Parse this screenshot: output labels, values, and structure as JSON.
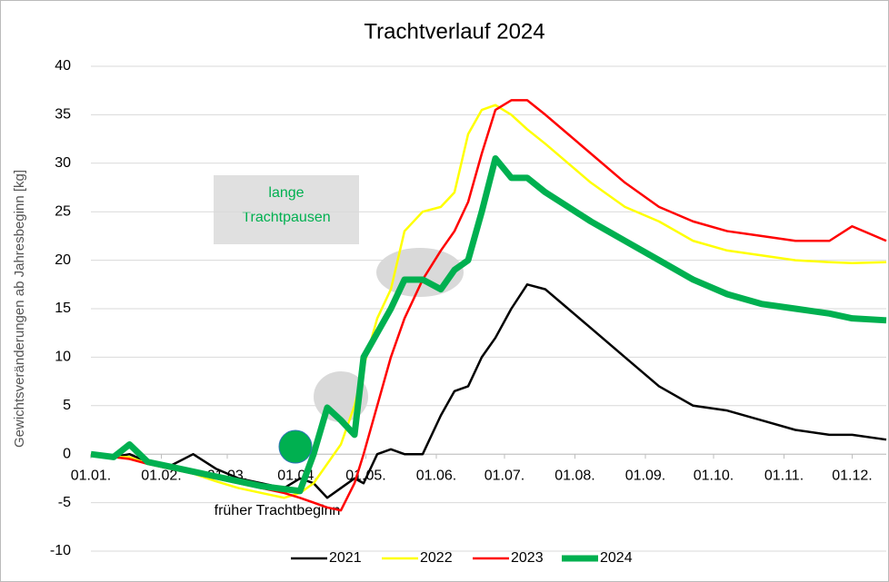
{
  "chart_data": {
    "type": "line",
    "title": "Trachtverlauf 2024",
    "y_label": "Gewichtsveränderungen ab Jahresbeginn [kg]",
    "annotations": {
      "pause": [
        "lange",
        "Trachtpausen"
      ],
      "start": "früher Trachtbeginn"
    },
    "x": [
      0,
      10,
      17,
      25,
      35,
      45,
      55,
      65,
      75,
      85,
      92,
      98,
      104,
      110,
      116,
      120,
      126,
      132,
      138,
      146,
      154,
      160,
      166,
      172,
      178,
      185,
      192,
      200,
      210,
      220,
      235,
      250,
      265,
      280,
      295,
      310,
      325,
      335,
      350
    ],
    "series": [
      {
        "name": "2021",
        "color": "#000000",
        "width": 2.5,
        "values": [
          0,
          -0.3,
          0,
          -0.8,
          -1.2,
          0,
          -1.5,
          -2.5,
          -3,
          -3.5,
          -2.5,
          -3,
          -4.5,
          -3.5,
          -2.5,
          -3,
          0,
          0.5,
          0,
          0,
          4,
          6.5,
          7,
          10,
          12,
          15,
          17.5,
          17,
          15,
          13,
          10,
          7,
          5,
          4.5,
          3.5,
          2.5,
          2,
          2,
          1.5
        ]
      },
      {
        "name": "2022",
        "color": "#ffff00",
        "width": 2.5,
        "values": [
          0,
          -0.3,
          -0.3,
          -1,
          -1.5,
          -2,
          -2.8,
          -3.5,
          -4,
          -4.5,
          -4,
          -3,
          -1,
          1,
          5,
          9,
          14,
          17,
          23,
          25,
          25.5,
          27,
          33,
          35.5,
          36,
          35,
          33.5,
          32,
          30,
          28,
          25.5,
          24,
          22,
          21,
          20.5,
          20,
          19.8,
          19.7,
          19.8
        ]
      },
      {
        "name": "2023",
        "color": "#ff0000",
        "width": 2.5,
        "values": [
          0,
          -0.3,
          -0.5,
          -1,
          -1.5,
          -2,
          -2.5,
          -3,
          -3.5,
          -4,
          -4.5,
          -5,
          -5.5,
          -5.8,
          -3,
          0,
          5,
          10,
          14,
          18,
          21,
          23,
          26,
          31,
          35.5,
          36.5,
          36.5,
          35,
          33,
          31,
          28,
          25.5,
          24,
          23,
          22.5,
          22,
          22,
          23.5,
          22
        ]
      },
      {
        "name": "2024",
        "color": "#00b050",
        "width": 7,
        "values": [
          0,
          -0.3,
          1,
          -0.8,
          -1.3,
          -1.8,
          -2.3,
          -2.8,
          -3.3,
          -3.6,
          -3.8,
          0,
          4.8,
          3.5,
          2,
          10,
          12.5,
          15,
          18,
          18,
          17,
          19,
          20,
          25,
          30.5,
          28.5,
          28.5,
          27,
          25.5,
          24,
          22,
          20,
          18,
          16.5,
          15.5,
          15,
          14.5,
          14,
          13.8
        ]
      }
    ],
    "xlim": [
      0,
      350
    ],
    "xticks": [
      {
        "value": 0,
        "label": "01.01."
      },
      {
        "value": 31,
        "label": "01.02."
      },
      {
        "value": 60,
        "label": "01.03."
      },
      {
        "value": 91,
        "label": "01.04."
      },
      {
        "value": 121,
        "label": "01.05."
      },
      {
        "value": 152,
        "label": "01.06."
      },
      {
        "value": 182,
        "label": "01.07."
      },
      {
        "value": 213,
        "label": "01.08."
      },
      {
        "value": 244,
        "label": "01.09."
      },
      {
        "value": 274,
        "label": "01.10."
      },
      {
        "value": 305,
        "label": "01.11."
      },
      {
        "value": 335,
        "label": "01.12."
      }
    ],
    "ylim": [
      -10,
      40
    ],
    "yticks": [
      -10,
      -5,
      0,
      5,
      10,
      15,
      20,
      25,
      30,
      35,
      40
    ],
    "grid": true,
    "legend": "bottom"
  }
}
